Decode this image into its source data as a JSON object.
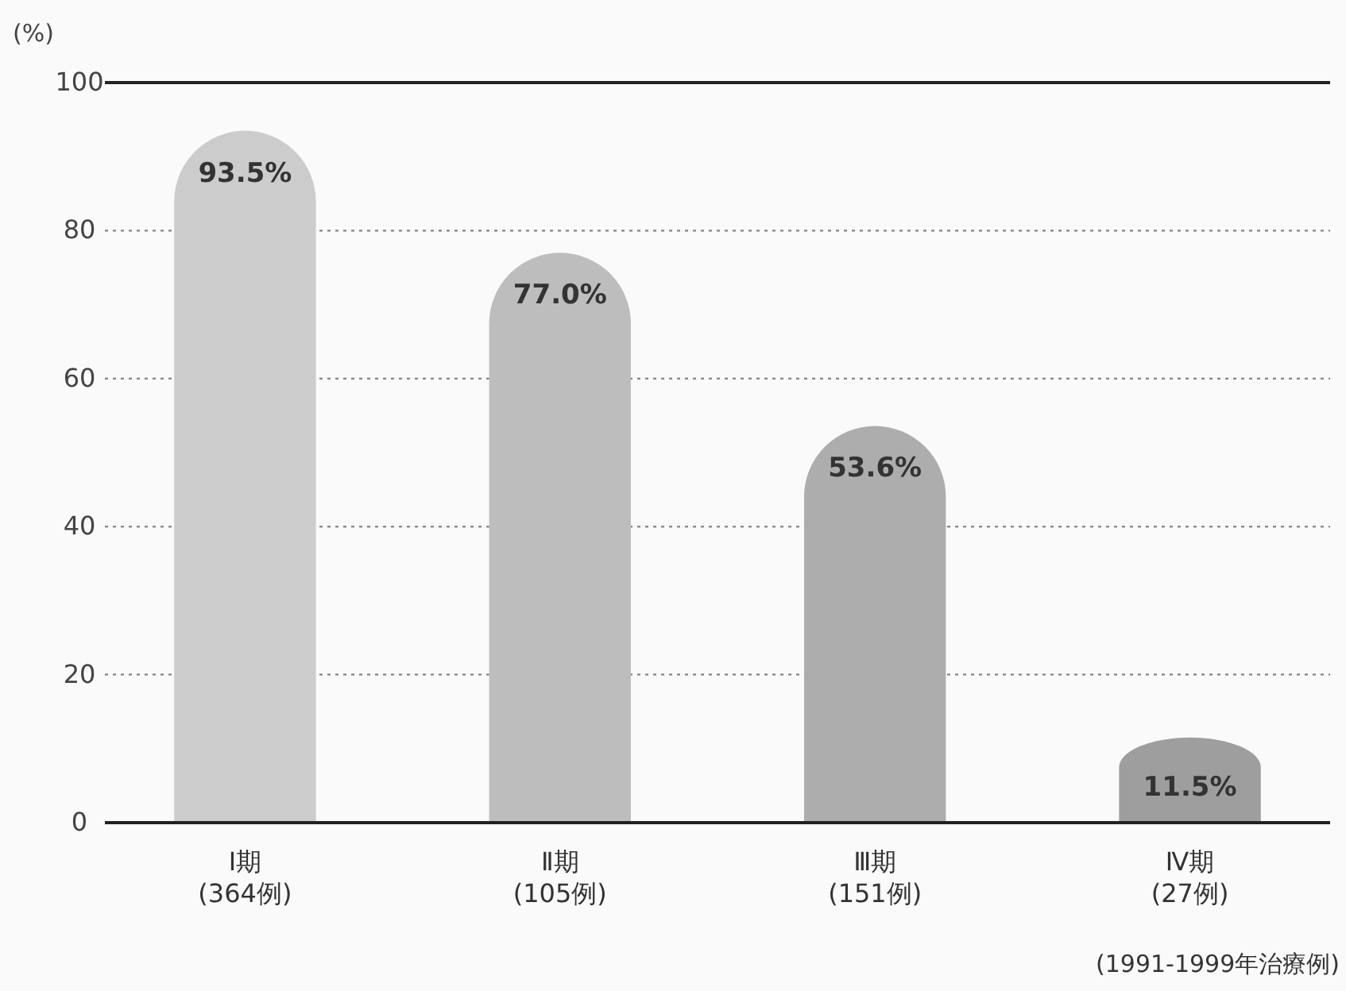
{
  "chart_data": {
    "type": "bar",
    "ylabel": "(%)",
    "categories": [
      "Ⅰ期\n(364例)",
      "Ⅱ期\n(105例)",
      "Ⅲ期\n(151例)",
      "Ⅳ期\n(27例)"
    ],
    "values": [
      93.5,
      77.0,
      53.6,
      11.5
    ],
    "value_labels": [
      "93.5%",
      "77.0%",
      "53.6%",
      "11.5%"
    ],
    "colors": [
      "#cccccc",
      "#bdbdbd",
      "#adadad",
      "#9e9e9e"
    ],
    "ylim": [
      0,
      100
    ],
    "yticks": [
      0,
      20,
      40,
      60,
      80,
      100
    ],
    "grid": "y",
    "annotations": [
      "(1991-1999年治療例)"
    ]
  }
}
